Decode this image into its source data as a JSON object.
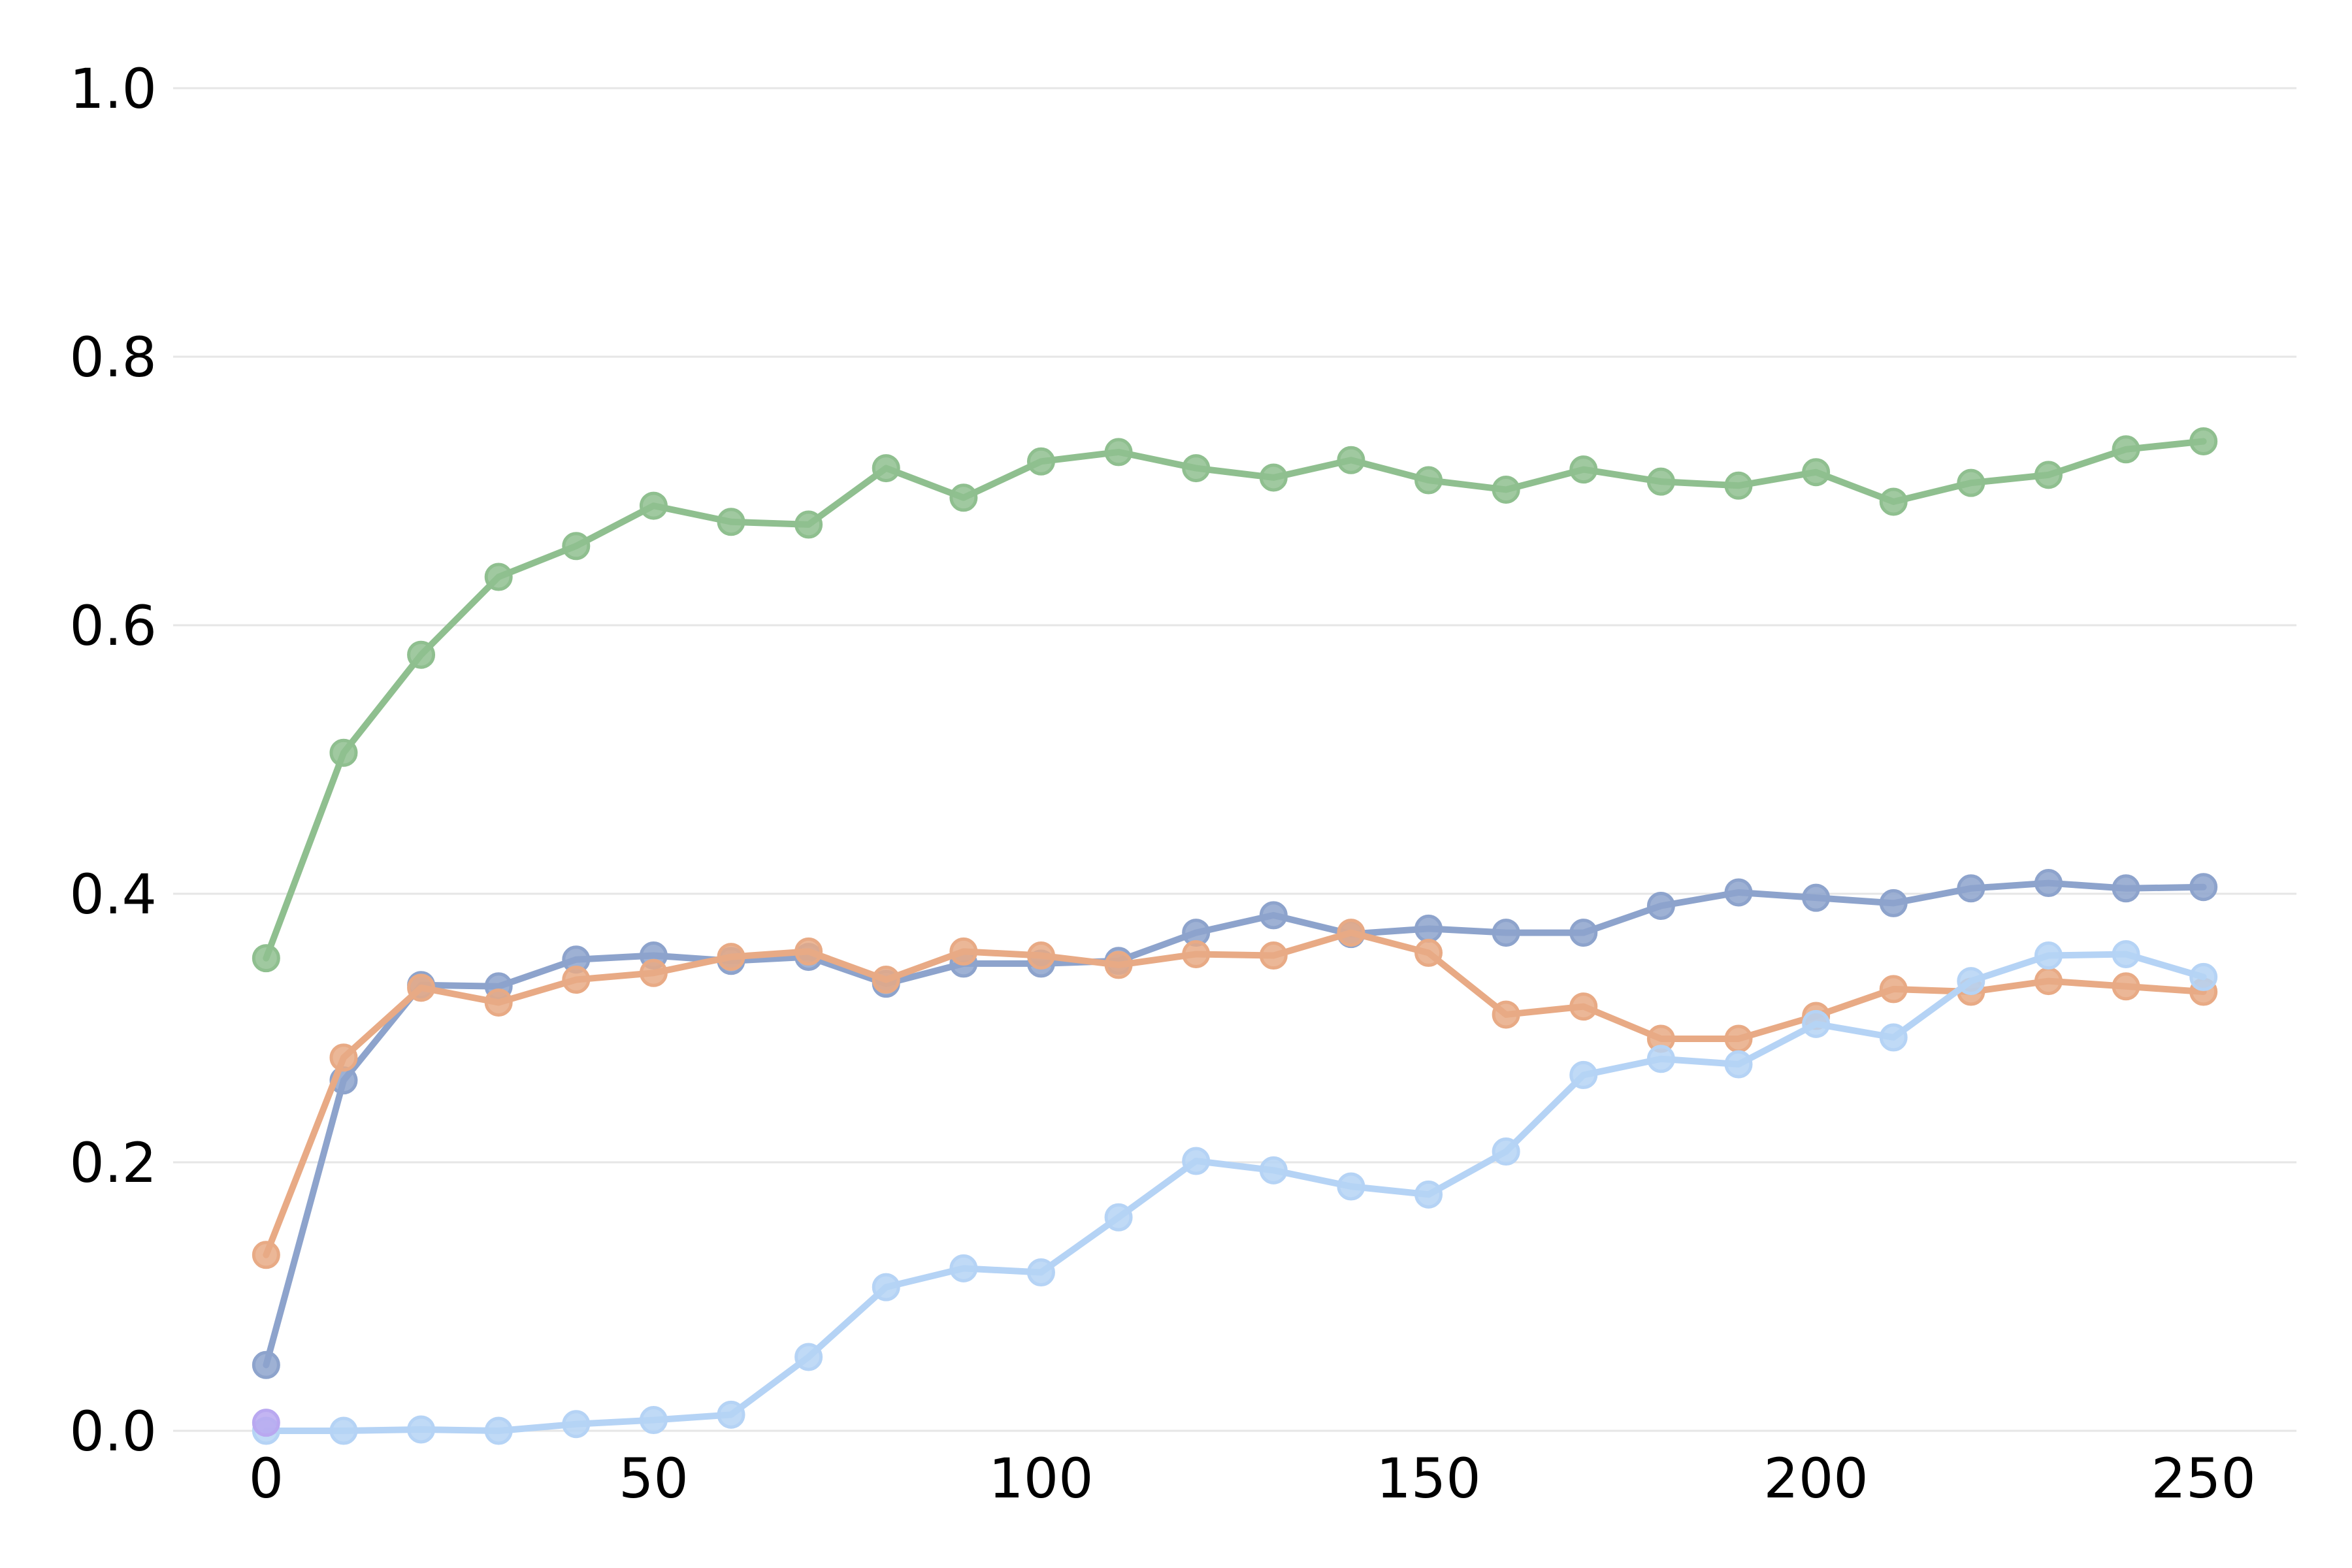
{
  "chart_data": {
    "type": "line",
    "title": "",
    "xlabel": "",
    "ylabel": "",
    "xlim": [
      -12,
      262
    ],
    "ylim": [
      0,
      1.0
    ],
    "xticks": [
      0,
      50,
      100,
      150,
      200,
      250
    ],
    "yticks": [
      0.0,
      0.2,
      0.4,
      0.6,
      0.8,
      1.0
    ],
    "xtick_labels": [
      "0",
      "50",
      "100",
      "150",
      "200",
      "250"
    ],
    "ytick_labels": [
      "0.0",
      "0.2",
      "0.4",
      "0.6",
      "0.8",
      "1.0"
    ],
    "grid": "horizontal",
    "legend": "none",
    "series": [
      {
        "color": "#8fbf8f",
        "x": [
          0,
          10,
          20,
          30,
          40,
          50,
          60,
          70,
          80,
          90,
          100,
          110,
          120,
          130,
          140,
          150,
          160,
          170,
          180,
          190,
          200,
          210,
          220,
          230,
          240,
          250
        ],
        "values": [
          0.352,
          0.505,
          0.578,
          0.636,
          0.659,
          0.689,
          0.677,
          0.675,
          0.717,
          0.695,
          0.722,
          0.729,
          0.717,
          0.71,
          0.723,
          0.708,
          0.701,
          0.716,
          0.707,
          0.704,
          0.714,
          0.692,
          0.706,
          0.712,
          0.731,
          0.737
        ]
      },
      {
        "color": "#8da3cc",
        "x": [
          0,
          10,
          20,
          30,
          40,
          50,
          60,
          70,
          80,
          90,
          100,
          110,
          120,
          130,
          140,
          150,
          160,
          170,
          180,
          190,
          200,
          210,
          220,
          230,
          240,
          250
        ],
        "values": [
          0.049,
          0.261,
          0.332,
          0.331,
          0.351,
          0.354,
          0.35,
          0.353,
          0.333,
          0.348,
          0.348,
          0.35,
          0.371,
          0.384,
          0.37,
          0.374,
          0.371,
          0.371,
          0.391,
          0.401,
          0.397,
          0.393,
          0.404,
          0.408,
          0.404,
          0.405
        ]
      },
      {
        "color": "#e8aa85",
        "x": [
          0,
          10,
          20,
          30,
          40,
          50,
          60,
          70,
          80,
          90,
          100,
          110,
          120,
          130,
          140,
          150,
          160,
          170,
          180,
          190,
          200,
          210,
          220,
          230,
          240,
          250
        ],
        "values": [
          0.131,
          0.278,
          0.33,
          0.319,
          0.336,
          0.341,
          0.353,
          0.357,
          0.336,
          0.357,
          0.354,
          0.347,
          0.355,
          0.354,
          0.371,
          0.356,
          0.31,
          0.316,
          0.292,
          0.292,
          0.309,
          0.329,
          0.327,
          0.335,
          0.331,
          0.327
        ]
      },
      {
        "color": "#b5d3f5",
        "x": [
          0,
          10,
          20,
          30,
          40,
          50,
          60,
          70,
          80,
          90,
          100,
          110,
          120,
          130,
          140,
          150,
          160,
          170,
          180,
          190,
          200,
          210,
          220,
          230,
          240,
          250
        ],
        "values": [
          0.0,
          0.0,
          0.001,
          0.0,
          0.005,
          0.008,
          0.012,
          0.055,
          0.107,
          0.121,
          0.118,
          0.159,
          0.201,
          0.194,
          0.182,
          0.176,
          0.208,
          0.265,
          0.277,
          0.273,
          0.303,
          0.293,
          0.335,
          0.354,
          0.355,
          0.338
        ]
      },
      {
        "color": "#b9a8f0",
        "x": [
          0
        ],
        "values": [
          0.006
        ]
      }
    ]
  }
}
